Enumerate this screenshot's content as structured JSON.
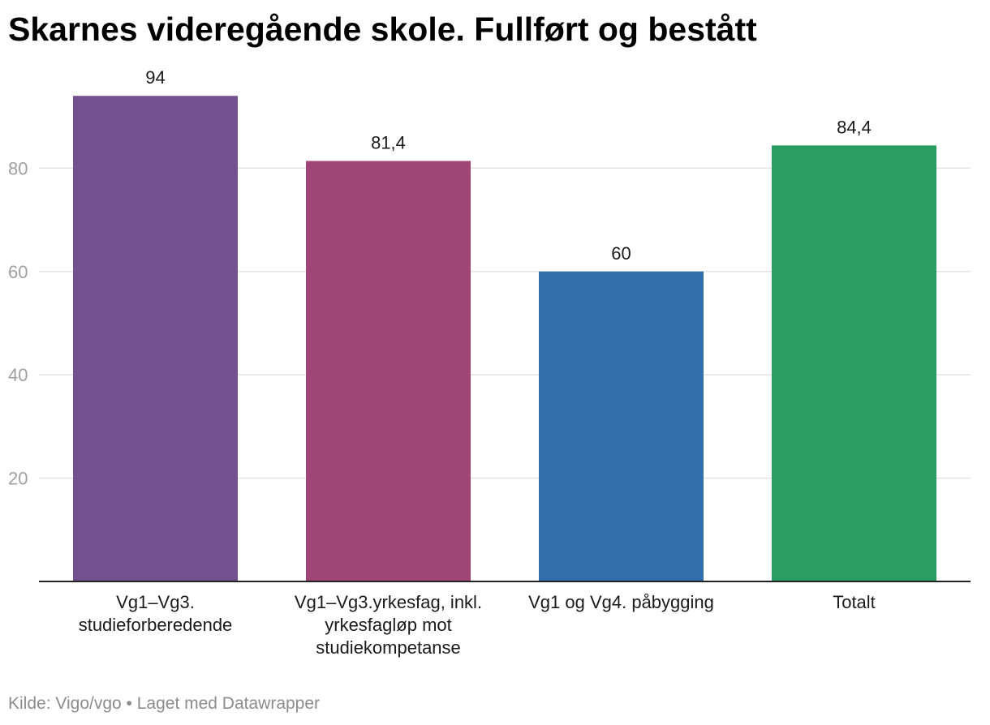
{
  "colors": {
    "gridline": "#e3e3e3",
    "baseline": "#222222",
    "tick_text": "#a0a0a0",
    "value_text": "#1a1a1a",
    "category_text": "#1a1a1a",
    "footer_text": "#8c8c8c"
  },
  "chart_data": {
    "type": "bar",
    "title": "Skarnes videregående skole. Fullført og bestått",
    "xlabel": "",
    "ylabel": "",
    "ylim": [
      0,
      100
    ],
    "y_ticks": [
      20,
      40,
      60,
      80
    ],
    "grid": true,
    "categories": [
      [
        "Vg1–Vg3.",
        "studieforberedende"
      ],
      [
        "Vg1–Vg3.yrkesfag, inkl.",
        "yrkesfagløp mot",
        "studiekompetanse"
      ],
      [
        "Vg1 og Vg4. påbygging"
      ],
      [
        "Totalt"
      ]
    ],
    "values": [
      94,
      81.4,
      60,
      84.4
    ],
    "value_labels": [
      "94",
      "81,4",
      "60",
      "84,4"
    ],
    "bar_colors": [
      "#73508f",
      "#a04677",
      "#336fad",
      "#2a9e62"
    ]
  },
  "footer": {
    "text": "Kilde: Vigo/vgo • Laget med Datawrapper"
  }
}
